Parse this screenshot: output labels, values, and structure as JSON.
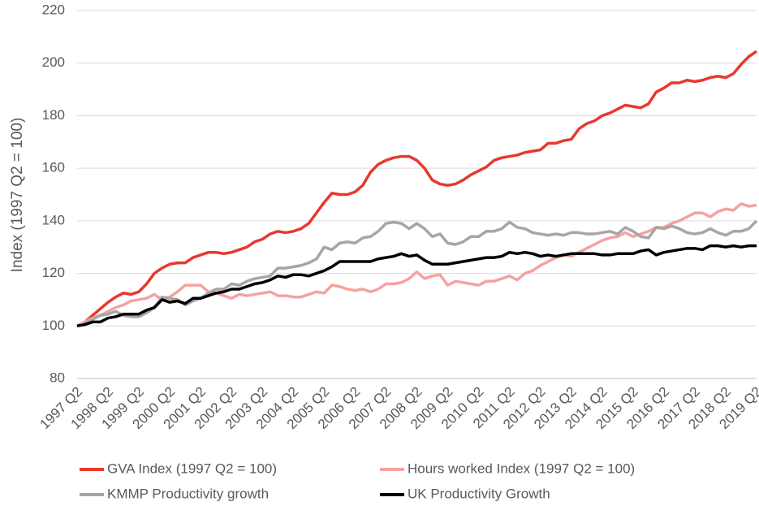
{
  "chart_data": {
    "type": "line",
    "ylabel": "Index (1997 Q2 = 100)",
    "categories": [
      "1997 Q2",
      null,
      null,
      null,
      "1998 Q2",
      null,
      null,
      null,
      "1999 Q2",
      null,
      null,
      null,
      "2000 Q2",
      null,
      null,
      null,
      "2001 Q2",
      null,
      null,
      null,
      "2002 Q2",
      null,
      null,
      null,
      "2003 Q2",
      null,
      null,
      null,
      "2004 Q2",
      null,
      null,
      null,
      "2005 Q2",
      null,
      null,
      null,
      "2006 Q2",
      null,
      null,
      null,
      "2007 Q2",
      null,
      null,
      null,
      "2008 Q2",
      null,
      null,
      null,
      "2009 Q2",
      null,
      null,
      null,
      "2010 Q2",
      null,
      null,
      null,
      "2011 Q2",
      null,
      null,
      null,
      "2012 Q2",
      null,
      null,
      null,
      "2013 Q2",
      null,
      null,
      null,
      "2014 Q2",
      null,
      null,
      null,
      "2015 Q2",
      null,
      null,
      null,
      "2016 Q2",
      null,
      null,
      null,
      "2017 Q2",
      null,
      null,
      null,
      "2018 Q2",
      null,
      null,
      null,
      "2019 Q2"
    ],
    "series": [
      {
        "name": "GVA Index (1997 Q2 = 100)",
        "color": "#e8382d",
        "values": [
          100,
          101.5,
          104,
          106.5,
          109,
          111,
          112.5,
          112,
          113,
          116,
          120,
          122,
          123.5,
          124,
          124,
          126,
          127,
          128,
          128,
          127.5,
          128,
          129,
          130,
          132,
          133,
          135,
          136,
          135.5,
          136,
          137,
          139,
          143,
          147,
          150.5,
          150,
          150,
          151,
          153.5,
          158.5,
          161.5,
          163,
          164,
          164.5,
          164.5,
          163,
          160,
          155.5,
          154,
          153.5,
          154,
          155.5,
          157.5,
          159,
          160.5,
          163,
          164,
          164.5,
          165,
          166,
          166.5,
          167,
          169.5,
          169.5,
          170.5,
          171,
          175,
          177,
          178,
          180,
          181,
          182.5,
          184,
          183.5,
          183,
          184.5,
          189,
          190.5,
          192.5,
          192.5,
          193.5,
          193,
          193.5,
          194.5,
          195,
          194.5,
          196,
          199.5,
          202.5,
          204.5
        ]
      },
      {
        "name": "Hours worked Index (1997 Q2 = 100)",
        "color": "#f4a3a0",
        "values": [
          100,
          101.5,
          103,
          104,
          105.5,
          107,
          108,
          109.5,
          110,
          110.5,
          112,
          110,
          111,
          113,
          115.5,
          115.5,
          115.5,
          113,
          112.5,
          111.5,
          110.5,
          112,
          111.5,
          112,
          112.5,
          113,
          111.5,
          111.5,
          111,
          111,
          112,
          113,
          112.5,
          115.5,
          115,
          114,
          113.5,
          114,
          113,
          114,
          116,
          116,
          116.5,
          118,
          120.5,
          118,
          119,
          119.5,
          115.5,
          117,
          116.5,
          116,
          115.5,
          117,
          117,
          118,
          119,
          117.5,
          120,
          121,
          123,
          124.5,
          126,
          127,
          126.5,
          128,
          129.5,
          131,
          132.5,
          133.5,
          134,
          135.5,
          134,
          135,
          136,
          137.5,
          137.5,
          139,
          140,
          141.5,
          143,
          143,
          141.5,
          143.5,
          144.5,
          144,
          146.5,
          145.5,
          146
        ]
      },
      {
        "name": "KMMP Productivity growth",
        "color": "#a6a6a6",
        "values": [
          100,
          101,
          102.5,
          104,
          104.5,
          105.5,
          104,
          103.5,
          103.5,
          105,
          107,
          111,
          110.5,
          110,
          108,
          109.5,
          110.5,
          112.5,
          114,
          114,
          116,
          115.5,
          117,
          118,
          118.5,
          119,
          122,
          122,
          122.5,
          123,
          124,
          125.5,
          130,
          129,
          131.5,
          132,
          131.5,
          133.5,
          134,
          136,
          139,
          139.5,
          139,
          137,
          139,
          137,
          134,
          135,
          131.5,
          131,
          132,
          134,
          134,
          136,
          136,
          137,
          139.5,
          137.5,
          137,
          135.5,
          135,
          134.5,
          135,
          134.5,
          135.5,
          135.5,
          135,
          135,
          135.5,
          136,
          135,
          137.5,
          136,
          134,
          133.5,
          137.5,
          137,
          138,
          137,
          135.5,
          135,
          135.5,
          137,
          135.5,
          134.5,
          136,
          136,
          137,
          140
        ]
      },
      {
        "name": "UK Productivity Growth",
        "color": "#000000",
        "values": [
          100,
          100.5,
          101.5,
          101.5,
          103,
          103.5,
          104.5,
          104.5,
          104.5,
          106,
          107,
          110,
          109,
          109.5,
          108.5,
          110.5,
          110.5,
          111.5,
          112.5,
          113,
          114,
          114,
          115,
          116,
          116.5,
          117.5,
          119,
          118.5,
          119.5,
          119.5,
          119,
          120,
          121,
          122.5,
          124.5,
          124.5,
          124.5,
          124.5,
          124.5,
          125.5,
          126,
          126.5,
          127.5,
          126.5,
          127,
          125,
          123.5,
          123.5,
          123.5,
          124,
          124.5,
          125,
          125.5,
          126,
          126,
          126.5,
          128,
          127.5,
          128,
          127.5,
          126.5,
          127,
          126.5,
          127,
          127.5,
          127.5,
          127.5,
          127.5,
          127,
          127,
          127.5,
          127.5,
          127.5,
          128.5,
          129,
          127,
          128,
          128.5,
          129,
          129.5,
          129.5,
          129,
          130.5,
          130.5,
          130,
          130.5,
          130,
          130.5,
          130.5
        ]
      }
    ],
    "ylim": [
      80,
      220
    ],
    "yticks": [
      80,
      100,
      120,
      140,
      160,
      180,
      200,
      220
    ],
    "grid": true
  }
}
